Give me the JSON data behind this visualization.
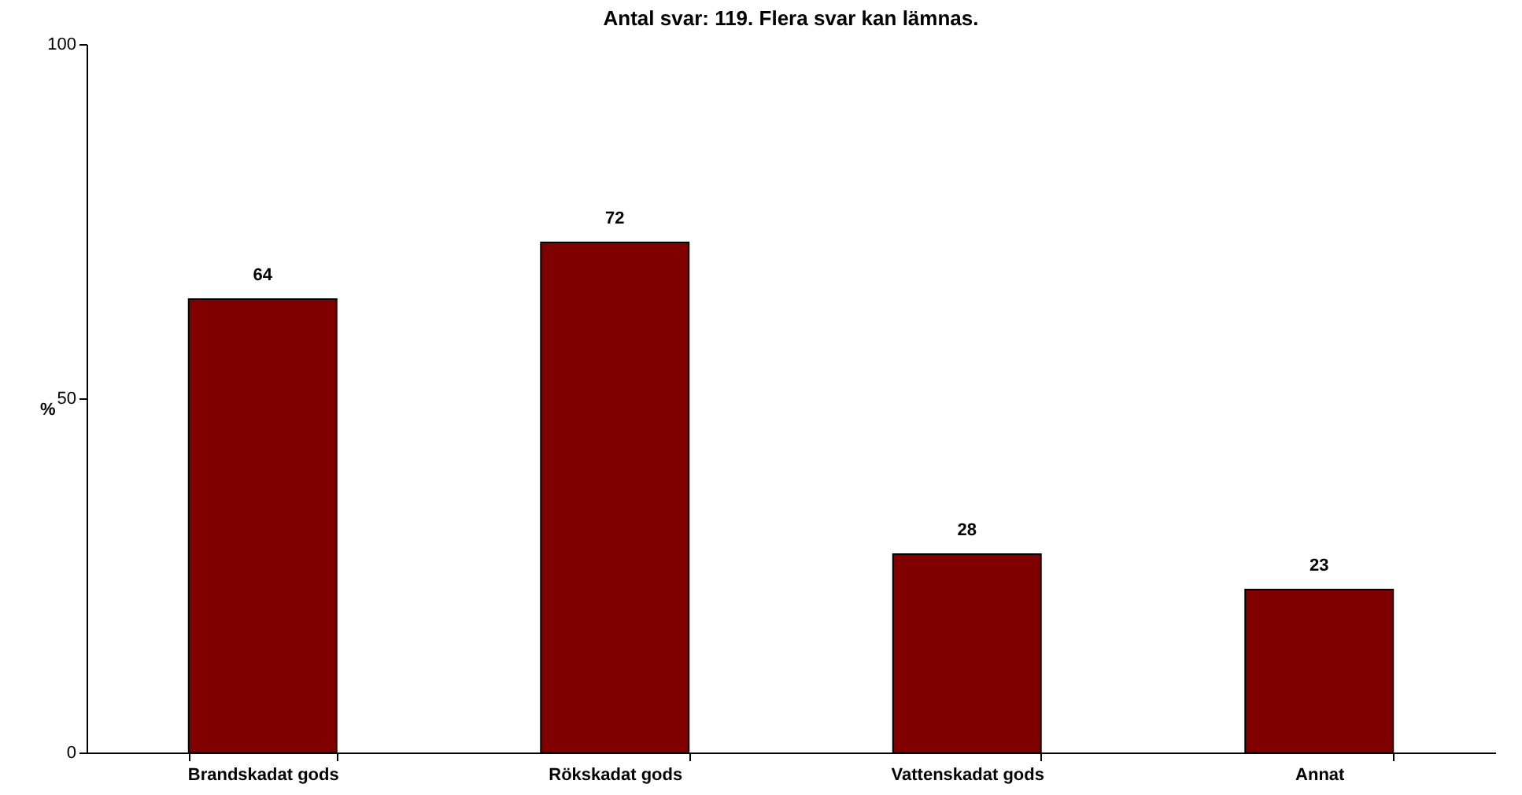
{
  "chart_data": {
    "type": "bar",
    "title": "Antal svar: 119. Flera svar kan lämnas.",
    "ylabel": "%",
    "categories": [
      "Brandskadat gods",
      "Rökskadat gods",
      "Vattenskadat gods",
      "Annat"
    ],
    "values": [
      64,
      72,
      28,
      23
    ],
    "color": "#800000",
    "ylim": [
      0,
      100
    ],
    "yticks": [
      0,
      50,
      100
    ],
    "grid": false,
    "data_labels": true
  }
}
